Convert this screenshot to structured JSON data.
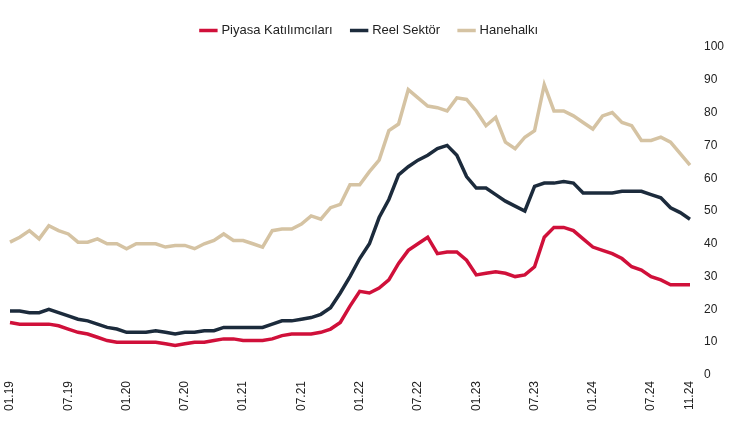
{
  "chart_data": {
    "type": "line",
    "categories": [
      "01.19",
      null,
      null,
      null,
      null,
      null,
      "07.19",
      null,
      null,
      null,
      null,
      null,
      "01.20",
      null,
      null,
      null,
      null,
      null,
      "07.20",
      null,
      null,
      null,
      null,
      null,
      "01.21",
      null,
      null,
      null,
      null,
      null,
      "07.21",
      null,
      null,
      null,
      null,
      null,
      "01.22",
      null,
      null,
      null,
      null,
      null,
      "07.22",
      null,
      null,
      null,
      null,
      null,
      "01.23",
      null,
      null,
      null,
      null,
      null,
      "07.23",
      null,
      null,
      null,
      null,
      null,
      "01.24",
      null,
      null,
      null,
      null,
      null,
      "07.24",
      null,
      null,
      null,
      "11.24"
    ],
    "series": [
      {
        "name": "Piyasa Katılımcıları",
        "color": "#d0103a",
        "values": [
          16,
          15.5,
          15.5,
          15.5,
          15.5,
          15,
          14,
          13,
          12.5,
          11.5,
          10.5,
          10,
          10,
          10,
          10,
          10,
          9.5,
          9,
          9.5,
          10,
          10,
          10.5,
          11,
          11,
          10.5,
          10.5,
          10.5,
          11,
          12,
          12.5,
          12.5,
          12.5,
          13,
          14,
          16,
          21,
          25.5,
          25,
          26.5,
          29,
          34,
          38,
          40,
          42,
          37,
          37.5,
          37.5,
          35,
          30.5,
          31,
          31.5,
          31,
          30,
          30.5,
          33,
          42,
          45,
          45,
          44,
          41.5,
          39,
          38,
          37,
          35.5,
          33,
          32,
          30,
          29,
          27.5,
          27.5,
          27.5
        ]
      },
      {
        "name": "Reel Sektör",
        "color": "#1c2b3c",
        "values": [
          19.5,
          19.5,
          19,
          19,
          20,
          19,
          18,
          17,
          16.5,
          15.5,
          14.5,
          14,
          13,
          13,
          13,
          13.5,
          13,
          12.5,
          13,
          13,
          13.5,
          13.5,
          14.5,
          14.5,
          14.5,
          14.5,
          14.5,
          15.5,
          16.5,
          16.5,
          17,
          17.5,
          18.5,
          20.5,
          25,
          30,
          35.5,
          40,
          48,
          53.5,
          61,
          63.5,
          65.5,
          67,
          69,
          70,
          67,
          60.5,
          57,
          57,
          55,
          53,
          51.5,
          50,
          57.5,
          58.5,
          58.5,
          59,
          58.5,
          55.5,
          55.5,
          55.5,
          55.5,
          56,
          56,
          56,
          55,
          54,
          51,
          49.5,
          47.5
        ]
      },
      {
        "name": "Hanehalkı",
        "color": "#d5c3a3",
        "values": [
          40.5,
          42,
          44,
          41.5,
          45.5,
          44,
          43,
          40.5,
          40.5,
          41.5,
          40,
          40,
          38.5,
          40,
          40,
          40,
          39,
          39.5,
          39.5,
          38.5,
          40,
          41,
          43,
          41,
          41,
          40,
          39,
          44,
          44.5,
          44.5,
          46,
          48.5,
          47.5,
          51,
          52,
          58,
          58,
          62,
          65.5,
          74.5,
          76.5,
          87,
          84.5,
          82,
          81.5,
          80.5,
          84.5,
          84,
          80.5,
          76,
          78.5,
          71,
          69,
          72.5,
          74.5,
          88.5,
          80.5,
          80.5,
          79,
          77,
          75,
          79,
          80,
          77,
          76,
          71.5,
          71.5,
          72.5,
          71,
          67.5,
          64
        ]
      }
    ],
    "ylim": [
      0,
      100
    ],
    "yticks": [
      0,
      10,
      20,
      30,
      40,
      50,
      60,
      70,
      80,
      90,
      100
    ],
    "grid": false,
    "legend": "top"
  }
}
